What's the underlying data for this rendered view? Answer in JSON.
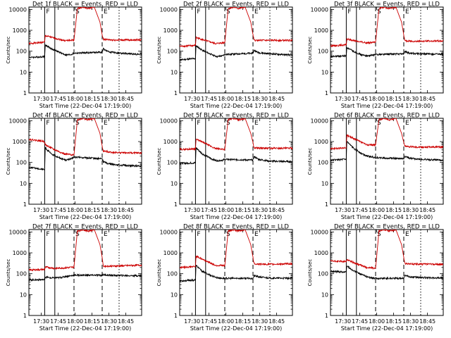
{
  "chart_data": {
    "type": "line",
    "y_scale": "log",
    "ylim": [
      1,
      13000
    ],
    "y_ticks": [
      1,
      10,
      100,
      1000,
      10000
    ],
    "y_tick_labels": [
      "1",
      "10",
      "100",
      "1000",
      "10000"
    ],
    "ylabel": "Counts/sec",
    "xlabel": "Start Time (22-Dec-04 17:19:00)",
    "x_unit": "minutes after start",
    "xlim": [
      0,
      100
    ],
    "x_ticks": [
      11,
      26,
      41,
      56,
      71,
      86
    ],
    "x_tick_labels": [
      "17:30",
      "17:45",
      "18:00",
      "18:15",
      "18:30",
      "18:45"
    ],
    "series_names": [
      "Events",
      "LLD"
    ],
    "series_colors": {
      "Events": "#000000",
      "LLD": "#cc0000"
    },
    "panels": [
      {
        "title": "Det 1f BLACK = Events, RED = LLD",
        "markers": [
          {
            "x": 14,
            "style": "solid",
            "label": "F"
          },
          {
            "x": 23,
            "style": "solid",
            "label": ""
          },
          {
            "x": 40,
            "style": "dashed",
            "label": "S"
          },
          {
            "x": 65,
            "style": "dashed",
            "label": "E"
          },
          {
            "x": 80,
            "style": "dotted",
            "label": ""
          }
        ],
        "series": [
          {
            "name": "LLD",
            "x": [
              0,
              14,
              14.5,
              23,
              32,
              40,
              43,
              48,
              52,
              58,
              63,
              65,
              66,
              75,
              100
            ],
            "y": [
              230,
              270,
              550,
              420,
              320,
              340,
              11000,
              13000,
              11000,
              13000,
              2500,
              600,
              370,
              340,
              350
            ]
          },
          {
            "name": "Events",
            "x": [
              0,
              14,
              14.5,
              20,
              28,
              33,
              38,
              40,
              65,
              66,
              70,
              80,
              100
            ],
            "y": [
              50,
              55,
              200,
              130,
              85,
              65,
              70,
              80,
              90,
              130,
              95,
              80,
              70
            ]
          }
        ]
      },
      {
        "title": "Det 2f BLACK = Events, RED = LLD",
        "markers": [
          {
            "x": 14,
            "style": "solid",
            "label": "F"
          },
          {
            "x": 23,
            "style": "solid",
            "label": ""
          },
          {
            "x": 40,
            "style": "dashed",
            "label": "S"
          },
          {
            "x": 65,
            "style": "dashed",
            "label": "E"
          },
          {
            "x": 80,
            "style": "dotted",
            "label": ""
          }
        ],
        "series": [
          {
            "name": "LLD",
            "x": [
              0,
              14,
              14.5,
              23,
              32,
              40,
              43,
              48,
              52,
              58,
              63,
              65,
              66,
              75,
              100
            ],
            "y": [
              170,
              190,
              450,
              320,
              230,
              260,
              11000,
              13000,
              11000,
              13000,
              2500,
              600,
              330,
              330,
              330
            ]
          },
          {
            "name": "Events",
            "x": [
              0,
              14,
              14.5,
              20,
              28,
              33,
              38,
              40,
              65,
              66,
              70,
              80,
              100
            ],
            "y": [
              38,
              45,
              180,
              110,
              70,
              55,
              60,
              70,
              80,
              110,
              85,
              75,
              65
            ]
          }
        ]
      },
      {
        "title": "Det 3f BLACK = Events, RED = LLD",
        "markers": [
          {
            "x": 14,
            "style": "solid",
            "label": "F"
          },
          {
            "x": 23,
            "style": "solid",
            "label": ""
          },
          {
            "x": 40,
            "style": "dashed",
            "label": "S"
          },
          {
            "x": 65,
            "style": "dashed",
            "label": "E"
          },
          {
            "x": 80,
            "style": "dotted",
            "label": ""
          }
        ],
        "series": [
          {
            "name": "LLD",
            "x": [
              0,
              14,
              14.5,
              23,
              32,
              40,
              43,
              48,
              52,
              58,
              63,
              65,
              66,
              75,
              100
            ],
            "y": [
              180,
              200,
              380,
              300,
              250,
              270,
              11000,
              13000,
              11000,
              13000,
              2500,
              600,
              310,
              300,
              310
            ]
          },
          {
            "name": "Events",
            "x": [
              0,
              14,
              14.5,
              20,
              28,
              33,
              38,
              40,
              65,
              66,
              70,
              80,
              100
            ],
            "y": [
              55,
              60,
              150,
              100,
              65,
              60,
              65,
              70,
              75,
              95,
              80,
              75,
              70
            ]
          }
        ]
      },
      {
        "title": "Det 4f BLACK = Events, RED = LLD",
        "markers": [
          {
            "x": 14,
            "style": "solid",
            "label": "F"
          },
          {
            "x": 23,
            "style": "solid",
            "label": ""
          },
          {
            "x": 40,
            "style": "dashed",
            "label": "S"
          },
          {
            "x": 65,
            "style": "dashed",
            "label": "E"
          },
          {
            "x": 80,
            "style": "dotted",
            "label": ""
          }
        ],
        "series": [
          {
            "name": "LLD",
            "x": [
              0,
              14,
              14.5,
              23,
              32,
              40,
              43,
              48,
              52,
              58,
              63,
              65,
              66,
              75,
              100
            ],
            "y": [
              1300,
              1000,
              700,
              400,
              250,
              230,
              11000,
              13000,
              11000,
              13000,
              2500,
              600,
              350,
              300,
              280
            ]
          },
          {
            "name": "Events",
            "x": [
              0,
              14,
              14.5,
              20,
              28,
              33,
              38,
              40,
              65,
              66,
              70,
              80,
              100
            ],
            "y": [
              60,
              45,
              500,
              250,
              160,
              130,
              150,
              180,
              150,
              110,
              90,
              75,
              65
            ]
          }
        ]
      },
      {
        "title": "Det 5f BLACK = Events, RED = LLD",
        "markers": [
          {
            "x": 14,
            "style": "solid",
            "label": "F"
          },
          {
            "x": 23,
            "style": "solid",
            "label": ""
          },
          {
            "x": 40,
            "style": "dashed",
            "label": "S"
          },
          {
            "x": 65,
            "style": "dashed",
            "label": "E"
          },
          {
            "x": 80,
            "style": "dotted",
            "label": ""
          }
        ],
        "series": [
          {
            "name": "LLD",
            "x": [
              0,
              14,
              14.5,
              23,
              32,
              40,
              43,
              48,
              52,
              58,
              63,
              65,
              66,
              75,
              100
            ],
            "y": [
              420,
              450,
              1300,
              800,
              450,
              430,
              11000,
              13000,
              11000,
              13000,
              2500,
              900,
              500,
              480,
              480
            ]
          },
          {
            "name": "Events",
            "x": [
              0,
              14,
              14.5,
              20,
              28,
              33,
              38,
              40,
              65,
              66,
              70,
              80,
              100
            ],
            "y": [
              90,
              95,
              500,
              260,
              150,
              120,
              130,
              140,
              130,
              190,
              140,
              115,
              110
            ]
          }
        ]
      },
      {
        "title": "Det 6f BLACK = Events, RED = LLD",
        "markers": [
          {
            "x": 14,
            "style": "solid",
            "label": "F"
          },
          {
            "x": 23,
            "style": "solid",
            "label": ""
          },
          {
            "x": 40,
            "style": "dashed",
            "label": "S"
          },
          {
            "x": 65,
            "style": "dashed",
            "label": "E"
          },
          {
            "x": 80,
            "style": "dotted",
            "label": ""
          }
        ],
        "series": [
          {
            "name": "LLD",
            "x": [
              0,
              14,
              14.5,
              23,
              32,
              40,
              43,
              48,
              52,
              58,
              63,
              65,
              66,
              75,
              100
            ],
            "y": [
              450,
              500,
              2000,
              1200,
              700,
              700,
              11000,
              13000,
              11000,
              13000,
              2500,
              900,
              600,
              550,
              550
            ]
          },
          {
            "name": "Events",
            "x": [
              0,
              14,
              14.5,
              20,
              28,
              33,
              38,
              40,
              65,
              66,
              70,
              80,
              100
            ],
            "y": [
              130,
              140,
              1000,
              500,
              260,
              200,
              180,
              170,
              150,
              200,
              160,
              140,
              130
            ]
          }
        ]
      },
      {
        "title": "Det 7f BLACK = Events, RED = LLD",
        "markers": [
          {
            "x": 14,
            "style": "solid",
            "label": "F"
          },
          {
            "x": 23,
            "style": "solid",
            "label": ""
          },
          {
            "x": 40,
            "style": "dashed",
            "label": "S"
          },
          {
            "x": 65,
            "style": "dashed",
            "label": "E"
          },
          {
            "x": 80,
            "style": "dotted",
            "label": ""
          }
        ],
        "series": [
          {
            "name": "LLD",
            "x": [
              0,
              14,
              14.5,
              23,
              32,
              40,
              43,
              48,
              52,
              58,
              63,
              65,
              66,
              75,
              100
            ],
            "y": [
              150,
              160,
              210,
              180,
              190,
              210,
              11000,
              13000,
              11000,
              13000,
              2500,
              600,
              230,
              230,
              260
            ]
          },
          {
            "name": "Events",
            "x": [
              0,
              14,
              14.5,
              20,
              28,
              33,
              38,
              40,
              65,
              66,
              70,
              80,
              100
            ],
            "y": [
              50,
              52,
              70,
              62,
              65,
              75,
              80,
              85,
              85,
              90,
              85,
              82,
              80
            ]
          }
        ]
      },
      {
        "title": "Det 8f BLACK = Events, RED = LLD",
        "markers": [
          {
            "x": 14,
            "style": "solid",
            "label": "F"
          },
          {
            "x": 23,
            "style": "solid",
            "label": ""
          },
          {
            "x": 40,
            "style": "dashed",
            "label": "S"
          },
          {
            "x": 65,
            "style": "dashed",
            "label": "E"
          },
          {
            "x": 80,
            "style": "dotted",
            "label": ""
          }
        ],
        "series": [
          {
            "name": "LLD",
            "x": [
              0,
              14,
              14.5,
              23,
              32,
              40,
              43,
              48,
              52,
              58,
              63,
              65,
              66,
              75,
              100
            ],
            "y": [
              200,
              220,
              700,
              420,
              250,
              240,
              11000,
              13000,
              11000,
              13000,
              2500,
              600,
              300,
              280,
              300
            ]
          },
          {
            "name": "Events",
            "x": [
              0,
              14,
              14.5,
              20,
              28,
              33,
              38,
              40,
              65,
              66,
              70,
              80,
              100
            ],
            "y": [
              45,
              50,
              250,
              130,
              80,
              65,
              60,
              60,
              60,
              80,
              70,
              62,
              60
            ]
          }
        ]
      },
      {
        "title": "Det 9f BLACK = Events, RED = LLD",
        "markers": [
          {
            "x": 14,
            "style": "solid",
            "label": "F"
          },
          {
            "x": 23,
            "style": "solid",
            "label": ""
          },
          {
            "x": 40,
            "style": "dashed",
            "label": "S"
          },
          {
            "x": 65,
            "style": "dashed",
            "label": "E"
          },
          {
            "x": 80,
            "style": "dotted",
            "label": ""
          }
        ],
        "series": [
          {
            "name": "LLD",
            "x": [
              0,
              14,
              14.5,
              23,
              32,
              40,
              43,
              48,
              52,
              58,
              63,
              65,
              66,
              75,
              100
            ],
            "y": [
              400,
              380,
              480,
              300,
              200,
              180,
              11000,
              13000,
              11000,
              13000,
              2500,
              600,
              300,
              290,
              280
            ]
          },
          {
            "name": "Events",
            "x": [
              0,
              14,
              14.5,
              20,
              28,
              33,
              38,
              40,
              65,
              66,
              70,
              80,
              100
            ],
            "y": [
              130,
              120,
              240,
              140,
              90,
              70,
              60,
              60,
              60,
              85,
              70,
              65,
              62
            ]
          }
        ]
      }
    ]
  }
}
